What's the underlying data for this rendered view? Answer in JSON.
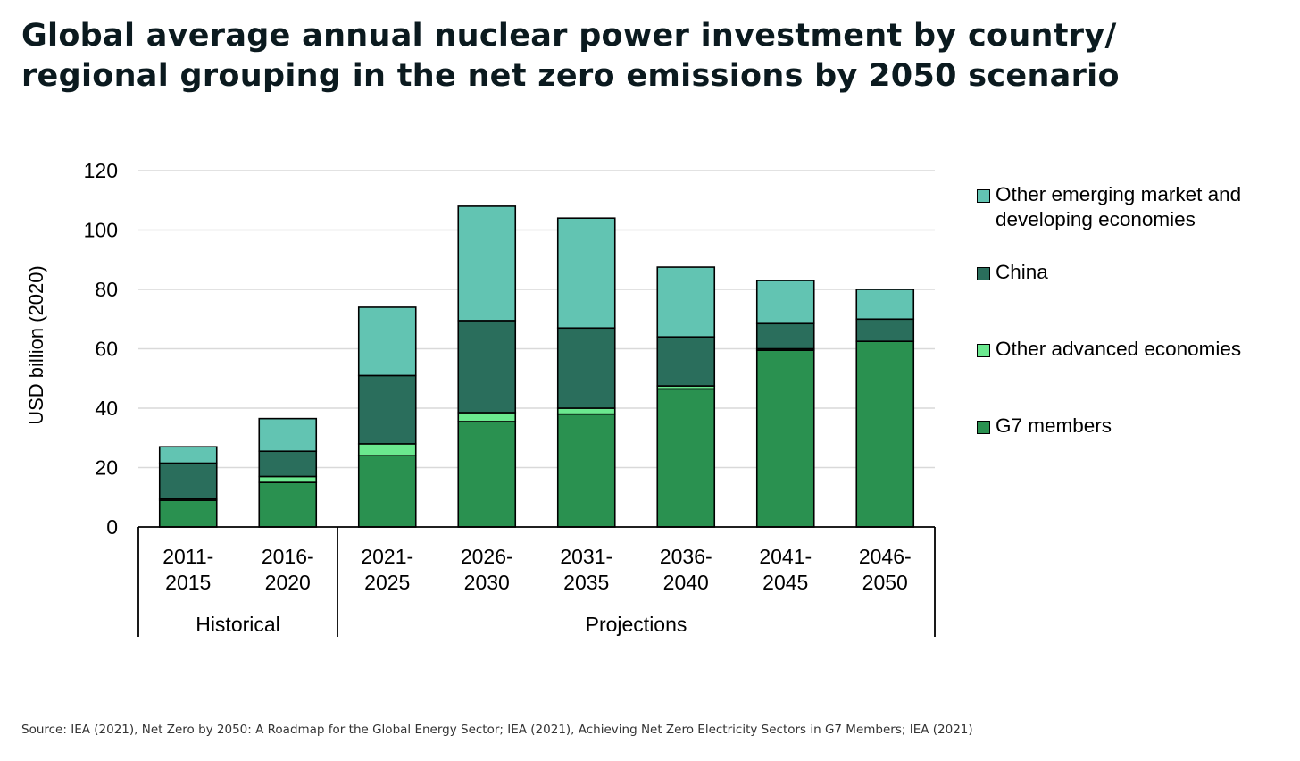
{
  "title_lines": [
    "Global average annual nuclear power investment by country/",
    "regional grouping in the net zero emissions by 2050 scenario"
  ],
  "source": "Source: IEA (2021), Net Zero by 2050: A Roadmap for the Global Energy Sector; IEA (2021), Achieving Net Zero Electricity Sectors in G7 Members; IEA (2021)",
  "chart_data": {
    "type": "bar",
    "stacked": true,
    "ylabel": "USD billion (2020)",
    "ylim": [
      0,
      120
    ],
    "yticks": [
      0,
      20,
      40,
      60,
      80,
      100,
      120
    ],
    "grid": true,
    "legend_position": "right",
    "categories": [
      "2011-2015",
      "2016-2020",
      "2021-2025",
      "2026-2030",
      "2031-2035",
      "2036-2040",
      "2041-2045",
      "2046-2050"
    ],
    "category_label_lines": [
      [
        "2011-",
        "2015"
      ],
      [
        "2016-",
        "2020"
      ],
      [
        "2021-",
        "2025"
      ],
      [
        "2026-",
        "2030"
      ],
      [
        "2031-",
        "2035"
      ],
      [
        "2036-",
        "2040"
      ],
      [
        "2041-",
        "2045"
      ],
      [
        "2046-",
        "2050"
      ]
    ],
    "groups": [
      {
        "label": "Historical",
        "categories": [
          "2011-2015",
          "2016-2020"
        ]
      },
      {
        "label": "Projections",
        "categories": [
          "2021-2025",
          "2026-2030",
          "2031-2035",
          "2036-2040",
          "2041-2045",
          "2046-2050"
        ]
      }
    ],
    "series": [
      {
        "name": "G7 members",
        "color": "#2a9150",
        "values": [
          9,
          15,
          24,
          35.5,
          38,
          46.5,
          59.5,
          62.5
        ]
      },
      {
        "name": "Other advanced economies",
        "color": "#6be88f",
        "values": [
          0.5,
          2,
          4,
          3,
          2,
          1,
          0.5,
          0
        ]
      },
      {
        "name": "China",
        "color": "#2a6e5c",
        "values": [
          12,
          8.5,
          23,
          31,
          27,
          16.5,
          8.5,
          7.5
        ]
      },
      {
        "name": "Other emerging market and\ndeveloping economies",
        "color": "#62c4b2",
        "values": [
          5.5,
          11,
          23,
          38.5,
          37,
          23.5,
          14.5,
          10
        ]
      }
    ]
  }
}
